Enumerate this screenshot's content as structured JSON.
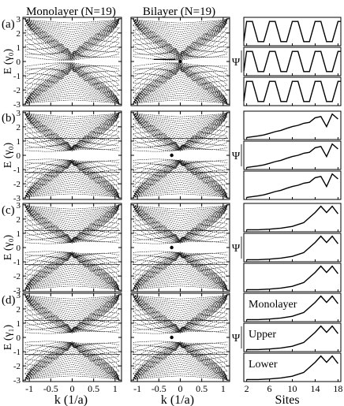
{
  "figure": {
    "column_titles": [
      "Monolayer (N=19)",
      "Bilayer (N=19)"
    ],
    "band_ylabels": [
      "E (γ₀)",
      "E (γ₀)",
      "E (γ₀)",
      "E (γ₁)"
    ],
    "psi_label": "Ψ",
    "k_xlabel": "k (1/a)",
    "sites_xlabel": "Sites"
  },
  "chart_data": {
    "type": "line",
    "rows": [
      {
        "label": "(a)",
        "panel_labels": []
      },
      {
        "label": "(b)",
        "panel_labels": []
      },
      {
        "label": "(c)",
        "panel_labels": []
      },
      {
        "label": "(d)",
        "panel_labels": [
          "Monolayer",
          "Upper",
          "Lower"
        ]
      }
    ],
    "band_axes": {
      "xlim": [
        -1.15,
        1.15
      ],
      "ylim": [
        -3.1,
        3.1
      ],
      "xticks": [
        -1,
        -0.5,
        0,
        0.5,
        1
      ],
      "xtick_labels": [
        "-1",
        "-0.5",
        "0",
        "0.5",
        "1"
      ],
      "yticks": [
        3,
        2,
        1,
        0,
        -1,
        -2,
        -3
      ],
      "ytick_labels": [
        "3",
        "2",
        "1",
        "0",
        "-1",
        "-2",
        "-3"
      ]
    },
    "sites_axes": {
      "xlim": [
        1.5,
        18.5
      ],
      "xticks": [
        2,
        6,
        10,
        14,
        18
      ],
      "xtick_labels": [
        "2",
        "6",
        "10",
        "14",
        "18"
      ],
      "ylim": [
        0,
        1
      ]
    },
    "wavefunctions": [
      {
        "row": "(a)",
        "series": [
          {
            "sites": [
              1.5,
              2,
              3,
              4,
              5,
              6,
              7,
              8,
              9,
              10,
              11,
              12,
              13,
              14,
              15,
              16,
              17,
              18,
              18.5
            ],
            "values": [
              0.12,
              0.9,
              0.9,
              0.1,
              0.1,
              0.9,
              0.9,
              0.1,
              0.1,
              0.9,
              0.9,
              0.1,
              0.1,
              0.9,
              0.9,
              0.1,
              0.1,
              0.9,
              0.9
            ]
          },
          {
            "sites": [
              1.5,
              2,
              3,
              4,
              5,
              6,
              7,
              8,
              9,
              10,
              11,
              12,
              13,
              14,
              15,
              16,
              17,
              18,
              18.5
            ],
            "values": [
              0.12,
              0.9,
              0.9,
              0.1,
              0.1,
              0.9,
              0.9,
              0.1,
              0.1,
              0.9,
              0.9,
              0.1,
              0.1,
              0.9,
              0.9,
              0.1,
              0.1,
              0.9,
              0.9
            ]
          },
          {
            "sites": [
              1.5,
              2,
              3,
              4,
              5,
              6,
              7,
              8,
              9,
              10,
              11,
              12,
              13,
              14,
              15,
              16,
              17,
              18,
              18.5
            ],
            "values": [
              0.12,
              0.9,
              0.9,
              0.1,
              0.1,
              0.9,
              0.9,
              0.1,
              0.1,
              0.9,
              0.9,
              0.1,
              0.1,
              0.9,
              0.9,
              0.1,
              0.1,
              0.9,
              0.9
            ]
          }
        ]
      },
      {
        "row": "(b)",
        "series": [
          {
            "sites": [
              2,
              3,
              4,
              5,
              6,
              7,
              8,
              9,
              10,
              11,
              12,
              13,
              14,
              15,
              16,
              17,
              18
            ],
            "values": [
              0.02,
              0.05,
              0.08,
              0.12,
              0.18,
              0.25,
              0.3,
              0.38,
              0.45,
              0.5,
              0.58,
              0.62,
              0.8,
              0.85,
              0.45,
              0.95,
              0.75
            ]
          },
          {
            "sites": [
              2,
              3,
              4,
              5,
              6,
              7,
              8,
              9,
              10,
              11,
              12,
              13,
              14,
              15,
              16,
              17,
              18
            ],
            "values": [
              0.02,
              0.05,
              0.08,
              0.12,
              0.18,
              0.25,
              0.3,
              0.38,
              0.45,
              0.5,
              0.58,
              0.62,
              0.8,
              0.85,
              0.45,
              0.95,
              0.75
            ]
          },
          {
            "sites": [
              2,
              3,
              4,
              5,
              6,
              7,
              8,
              9,
              10,
              11,
              12,
              13,
              14,
              15,
              16,
              17,
              18
            ],
            "values": [
              0.02,
              0.05,
              0.08,
              0.12,
              0.18,
              0.25,
              0.3,
              0.38,
              0.45,
              0.5,
              0.58,
              0.62,
              0.8,
              0.85,
              0.45,
              0.95,
              0.75
            ]
          }
        ]
      },
      {
        "row": "(c)",
        "series": [
          {
            "sites": [
              2,
              4,
              6,
              8,
              10,
              12,
              13,
              14,
              15,
              16,
              17,
              18
            ],
            "values": [
              0.02,
              0.02,
              0.04,
              0.08,
              0.15,
              0.3,
              0.5,
              0.7,
              0.95,
              0.7,
              0.95,
              0.65
            ]
          },
          {
            "sites": [
              2,
              4,
              6,
              8,
              10,
              12,
              13,
              14,
              15,
              16,
              17,
              18
            ],
            "values": [
              0.02,
              0.02,
              0.04,
              0.08,
              0.15,
              0.3,
              0.5,
              0.7,
              0.95,
              0.7,
              0.95,
              0.65
            ]
          },
          {
            "sites": [
              2,
              4,
              6,
              8,
              10,
              12,
              13,
              14,
              15,
              16,
              17,
              18
            ],
            "values": [
              0.02,
              0.02,
              0.04,
              0.08,
              0.15,
              0.3,
              0.5,
              0.7,
              0.95,
              0.7,
              0.95,
              0.65
            ]
          }
        ]
      },
      {
        "row": "(d)",
        "series": [
          {
            "sites": [
              2,
              4,
              6,
              8,
              10,
              12,
              13,
              14,
              15,
              16,
              17,
              18
            ],
            "values": [
              0.02,
              0.02,
              0.04,
              0.08,
              0.15,
              0.3,
              0.5,
              0.7,
              0.95,
              0.7,
              0.95,
              0.65
            ]
          },
          {
            "sites": [
              2,
              4,
              6,
              8,
              10,
              12,
              13,
              14,
              15,
              16,
              17,
              18
            ],
            "values": [
              0.02,
              0.02,
              0.04,
              0.08,
              0.15,
              0.3,
              0.5,
              0.7,
              0.95,
              0.7,
              0.95,
              0.65
            ]
          },
          {
            "sites": [
              2,
              4,
              6,
              8,
              10,
              12,
              13,
              14,
              15,
              16,
              17,
              18
            ],
            "values": [
              0.02,
              0.02,
              0.04,
              0.08,
              0.15,
              0.3,
              0.5,
              0.7,
              0.95,
              0.7,
              0.95,
              0.65
            ]
          }
        ]
      }
    ]
  }
}
